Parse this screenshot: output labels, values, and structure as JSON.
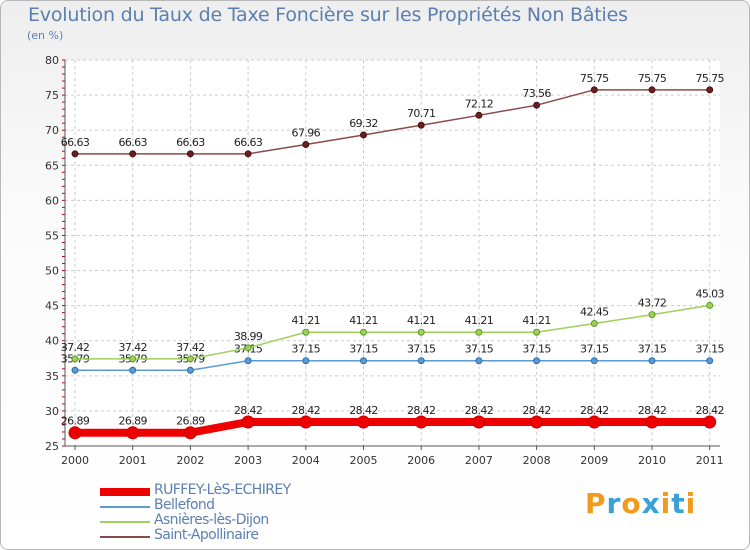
{
  "chart_data": {
    "type": "line",
    "title": "Evolution du Taux de Taxe Foncière sur les Propriétés Non Bâties",
    "subtitle": "(en %)",
    "x": [
      "2000",
      "2001",
      "2002",
      "2003",
      "2004",
      "2005",
      "2006",
      "2007",
      "2008",
      "2009",
      "2010",
      "2011"
    ],
    "ylim": [
      25,
      80
    ],
    "yticks": [
      25,
      30,
      35,
      40,
      45,
      50,
      55,
      60,
      65,
      70,
      75,
      80
    ],
    "grid": true,
    "legend_position": "bottom-left",
    "series": [
      {
        "name": "RUFFEY-LèS-ECHIREY",
        "color": "#ee0000",
        "values": [
          26.89,
          26.89,
          26.89,
          28.42,
          28.42,
          28.42,
          28.42,
          28.42,
          28.42,
          28.42,
          28.42,
          28.42
        ],
        "labels": [
          "26.89",
          "26.89",
          "26.89",
          "28.42",
          "28.42",
          "28.42",
          "28.42",
          "28.42",
          "28.42",
          "28.42",
          "28.42",
          "28.42"
        ]
      },
      {
        "name": "Bellefond",
        "color": "#5b9bd5",
        "values": [
          35.79,
          35.79,
          35.79,
          37.15,
          37.15,
          37.15,
          37.15,
          37.15,
          37.15,
          37.15,
          37.15,
          37.15
        ],
        "labels": [
          "35.79",
          "35.79",
          "35.79",
          "37.15",
          "37.15",
          "37.15",
          "37.15",
          "37.15",
          "37.15",
          "37.15",
          "37.15",
          "37.15"
        ]
      },
      {
        "name": "Asnières-lès-Dijon",
        "color": "#9ed15a",
        "values": [
          37.42,
          37.42,
          37.42,
          38.99,
          41.21,
          41.21,
          41.21,
          41.21,
          41.21,
          42.45,
          43.72,
          45.03
        ],
        "labels": [
          "37.42",
          "37.42",
          "37.42",
          "38.99",
          "41.21",
          "41.21",
          "41.21",
          "41.21",
          "41.21",
          "42.45",
          "43.72",
          "45.03"
        ]
      },
      {
        "name": "Saint-Apollinaire",
        "color": "#8b4a4a",
        "values": [
          66.63,
          66.63,
          66.63,
          66.63,
          67.96,
          69.32,
          70.71,
          72.12,
          73.56,
          75.75,
          75.75,
          75.75
        ],
        "labels": [
          "66.63",
          "66.63",
          "66.63",
          "66.63",
          "67.96",
          "69.32",
          "70.71",
          "72.12",
          "73.56",
          "75.75",
          "75.75",
          "75.75"
        ]
      }
    ]
  },
  "logo": {
    "letters": [
      "P",
      "r",
      "o",
      "x",
      "i",
      "t",
      "i"
    ]
  }
}
